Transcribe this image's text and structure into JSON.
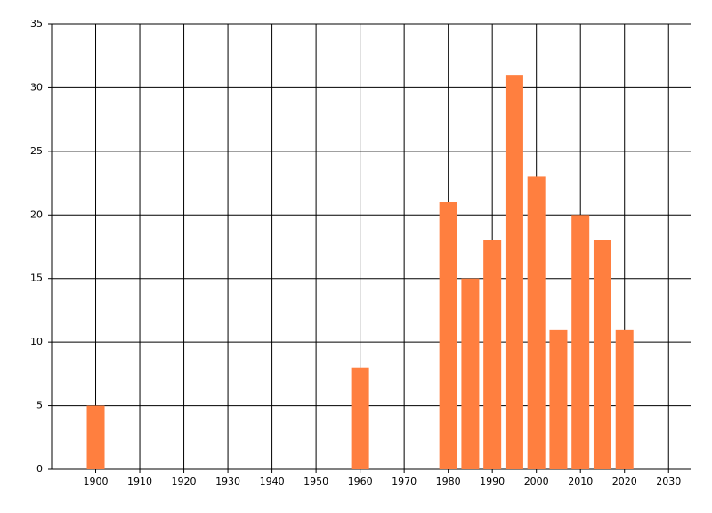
{
  "chart_data": {
    "type": "bar",
    "x": [
      1900,
      1960,
      1980,
      1985,
      1990,
      1995,
      2000,
      2005,
      2010,
      2015,
      2020
    ],
    "values": [
      5,
      8,
      21,
      15,
      18,
      31,
      23,
      11,
      20,
      18,
      11
    ],
    "color": "#ff7f3f",
    "xlim": [
      1890,
      2035
    ],
    "xticks": [
      1900,
      1910,
      1920,
      1930,
      1940,
      1950,
      1960,
      1970,
      1980,
      1990,
      2000,
      2010,
      2020,
      2030
    ],
    "ylim": [
      0,
      35
    ],
    "yticks": [
      0,
      5,
      10,
      15,
      20,
      25,
      30,
      35
    ],
    "grid": true
  }
}
